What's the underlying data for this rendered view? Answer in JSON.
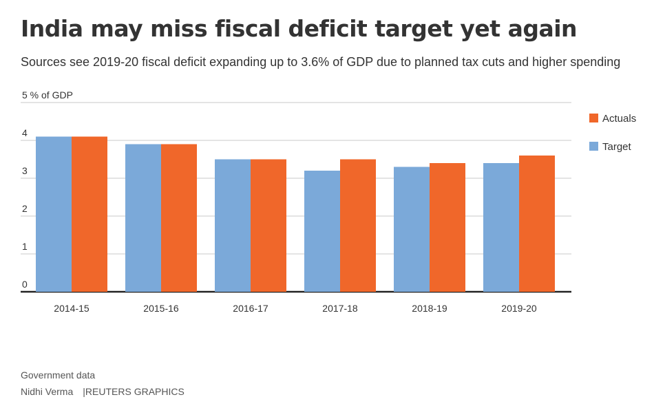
{
  "title": "India may miss fiscal deficit target yet again",
  "subtitle": "Sources see 2019-20 fiscal deficit expanding up to 3.6% of GDP due to planned tax cuts and higher spending",
  "source": "Government data",
  "author": "Nidhi Verma",
  "publisher": "REUTERS GRAPHICS",
  "chart_data": {
    "type": "bar",
    "ylabel": "% of GDP",
    "ylim": [
      0,
      5
    ],
    "yticks": [
      0,
      1,
      2,
      3,
      4,
      5
    ],
    "grid": true,
    "legend_position": "top-right",
    "categories": [
      "2014-15",
      "2015-16",
      "2016-17",
      "2017-18",
      "2018-19",
      "2019-20"
    ],
    "series": [
      {
        "name": "Target",
        "color": "#7ba9d9",
        "values": [
          4.1,
          3.9,
          3.5,
          3.2,
          3.3,
          3.4
        ]
      },
      {
        "name": "Actuals",
        "color": "#f0672a",
        "values": [
          4.1,
          3.9,
          3.5,
          3.5,
          3.4,
          3.6
        ]
      }
    ],
    "legend_order": [
      "Actuals",
      "Target"
    ]
  }
}
